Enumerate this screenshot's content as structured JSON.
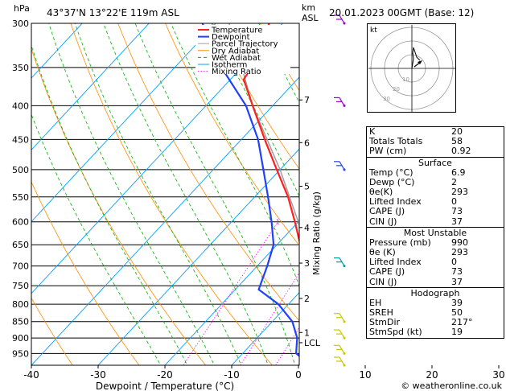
{
  "header": {
    "hpa": "hPa",
    "location": "43°37'N  13°22'E  119m  ASL",
    "km": "km",
    "asl": "ASL",
    "datetime": "20.01.2023  00GMT  (Base: 12)"
  },
  "legend": [
    "Temperature",
    "Dewpoint",
    "Parcel Trajectory",
    "Dry Adiabat",
    "Wet Adiabat",
    "Isotherm",
    "Mixing Ratio"
  ],
  "colors": {
    "temperature": "#ff2020",
    "dewpoint": "#2040ff",
    "parcel": "#a0a0a0",
    "dry_adiabat": "#ff8c00",
    "wet_adiabat": "#00b000",
    "isotherm": "#00a0ff",
    "mixing_ratio": "#ff00ff"
  },
  "chart_data": {
    "type": "line",
    "xlabel": "Dewpoint / Temperature (°C)",
    "ylabel": "",
    "right_label": "Mixing Ratio (g/kg)",
    "pressure_levels": [
      300,
      350,
      400,
      450,
      500,
      550,
      600,
      650,
      700,
      750,
      800,
      850,
      900,
      950
    ],
    "temp_ticks": [
      -40,
      -30,
      -20,
      -10,
      0,
      10,
      20,
      30
    ],
    "km_ticks": [
      {
        "label": "7",
        "p": 392
      },
      {
        "label": "6",
        "p": 455
      },
      {
        "label": "5",
        "p": 530
      },
      {
        "label": "4",
        "p": 612
      },
      {
        "label": "3",
        "p": 693
      },
      {
        "label": "2",
        "p": 784
      },
      {
        "label": "1",
        "p": 883
      },
      {
        "label": "LCL",
        "p": 915
      }
    ],
    "mixing_ratio_labels": [
      "1",
      "2",
      "3",
      "4",
      "6",
      "8",
      "10",
      "15",
      "20",
      "25"
    ],
    "mixing_ratio_values": [
      1,
      2,
      3,
      4,
      6,
      8,
      10,
      15,
      20,
      25
    ],
    "temperature": [
      {
        "p": 990,
        "t": 6.9
      },
      {
        "p": 950,
        "t": 4.5
      },
      {
        "p": 900,
        "t": 1.0
      },
      {
        "p": 850,
        "t": -2.5
      },
      {
        "p": 800,
        "t": -6.0
      },
      {
        "p": 750,
        "t": -9.5
      },
      {
        "p": 700,
        "t": -13.0
      },
      {
        "p": 650,
        "t": -16.5
      },
      {
        "p": 600,
        "t": -20.5
      },
      {
        "p": 550,
        "t": -25.0
      },
      {
        "p": 500,
        "t": -30.5
      },
      {
        "p": 450,
        "t": -36.5
      },
      {
        "p": 400,
        "t": -43.0
      },
      {
        "p": 365,
        "t": -48.0
      },
      {
        "p": 350,
        "t": -48.5
      },
      {
        "p": 300,
        "t": -52.0
      }
    ],
    "dewpoint": [
      {
        "p": 990,
        "t": 2.0
      },
      {
        "p": 960,
        "t": -1.0
      },
      {
        "p": 950,
        "t": -2.0
      },
      {
        "p": 900,
        "t": -4.0
      },
      {
        "p": 850,
        "t": -7.0
      },
      {
        "p": 800,
        "t": -11.5
      },
      {
        "p": 760,
        "t": -16.5
      },
      {
        "p": 700,
        "t": -18.5
      },
      {
        "p": 650,
        "t": -20.5
      },
      {
        "p": 600,
        "t": -24.0
      },
      {
        "p": 550,
        "t": -28.0
      },
      {
        "p": 500,
        "t": -32.5
      },
      {
        "p": 450,
        "t": -37.5
      },
      {
        "p": 400,
        "t": -44.0
      },
      {
        "p": 350,
        "t": -53.0
      },
      {
        "p": 300,
        "t": -62.0
      }
    ],
    "parcel": [
      {
        "p": 990,
        "t": 6.9
      },
      {
        "p": 915,
        "t": 1.0
      },
      {
        "p": 850,
        "t": -2.5
      },
      {
        "p": 800,
        "t": -5.5
      },
      {
        "p": 700,
        "t": -12.0
      },
      {
        "p": 600,
        "t": -20.0
      },
      {
        "p": 500,
        "t": -30.0
      },
      {
        "p": 400,
        "t": -43.0
      },
      {
        "p": 300,
        "t": -58.0
      }
    ],
    "wind_barbs": [
      {
        "p": 300,
        "color": "#9900cc"
      },
      {
        "p": 400,
        "color": "#9900cc"
      },
      {
        "p": 500,
        "color": "#2040ff"
      },
      {
        "p": 700,
        "color": "#00a0a0"
      },
      {
        "p": 850,
        "color": "#c8c800"
      },
      {
        "p": 900,
        "color": "#c8c800"
      },
      {
        "p": 950,
        "color": "#c8c800"
      },
      {
        "p": 990,
        "color": "#c8c800"
      }
    ]
  },
  "hodograph": {
    "label": "kt",
    "ring_labels": [
      "10",
      "20",
      "30"
    ]
  },
  "indices": [
    {
      "label": "K",
      "value": "20"
    },
    {
      "label": "Totals Totals",
      "value": "58"
    },
    {
      "label": "PW (cm)",
      "value": "0.92"
    }
  ],
  "surface": {
    "title": "Surface",
    "rows": [
      {
        "label": "Temp (°C)",
        "value": "6.9"
      },
      {
        "label": "Dewp (°C)",
        "value": "2"
      },
      {
        "label": "θe(K)",
        "value": "293"
      },
      {
        "label": "Lifted Index",
        "value": "0"
      },
      {
        "label": "CAPE (J)",
        "value": "73"
      },
      {
        "label": "CIN (J)",
        "value": "37"
      }
    ]
  },
  "most_unstable": {
    "title": "Most Unstable",
    "rows": [
      {
        "label": "Pressure (mb)",
        "value": "990"
      },
      {
        "label": "θe (K)",
        "value": "293"
      },
      {
        "label": "Lifted Index",
        "value": "0"
      },
      {
        "label": "CAPE (J)",
        "value": "73"
      },
      {
        "label": "CIN (J)",
        "value": "37"
      }
    ]
  },
  "hodograph_table": {
    "title": "Hodograph",
    "rows": [
      {
        "label": "EH",
        "value": "39"
      },
      {
        "label": "SREH",
        "value": "50"
      },
      {
        "label": "StmDir",
        "value": "217°"
      },
      {
        "label": "StmSpd (kt)",
        "value": "19"
      }
    ]
  },
  "footer": "© weatheronline.co.uk"
}
